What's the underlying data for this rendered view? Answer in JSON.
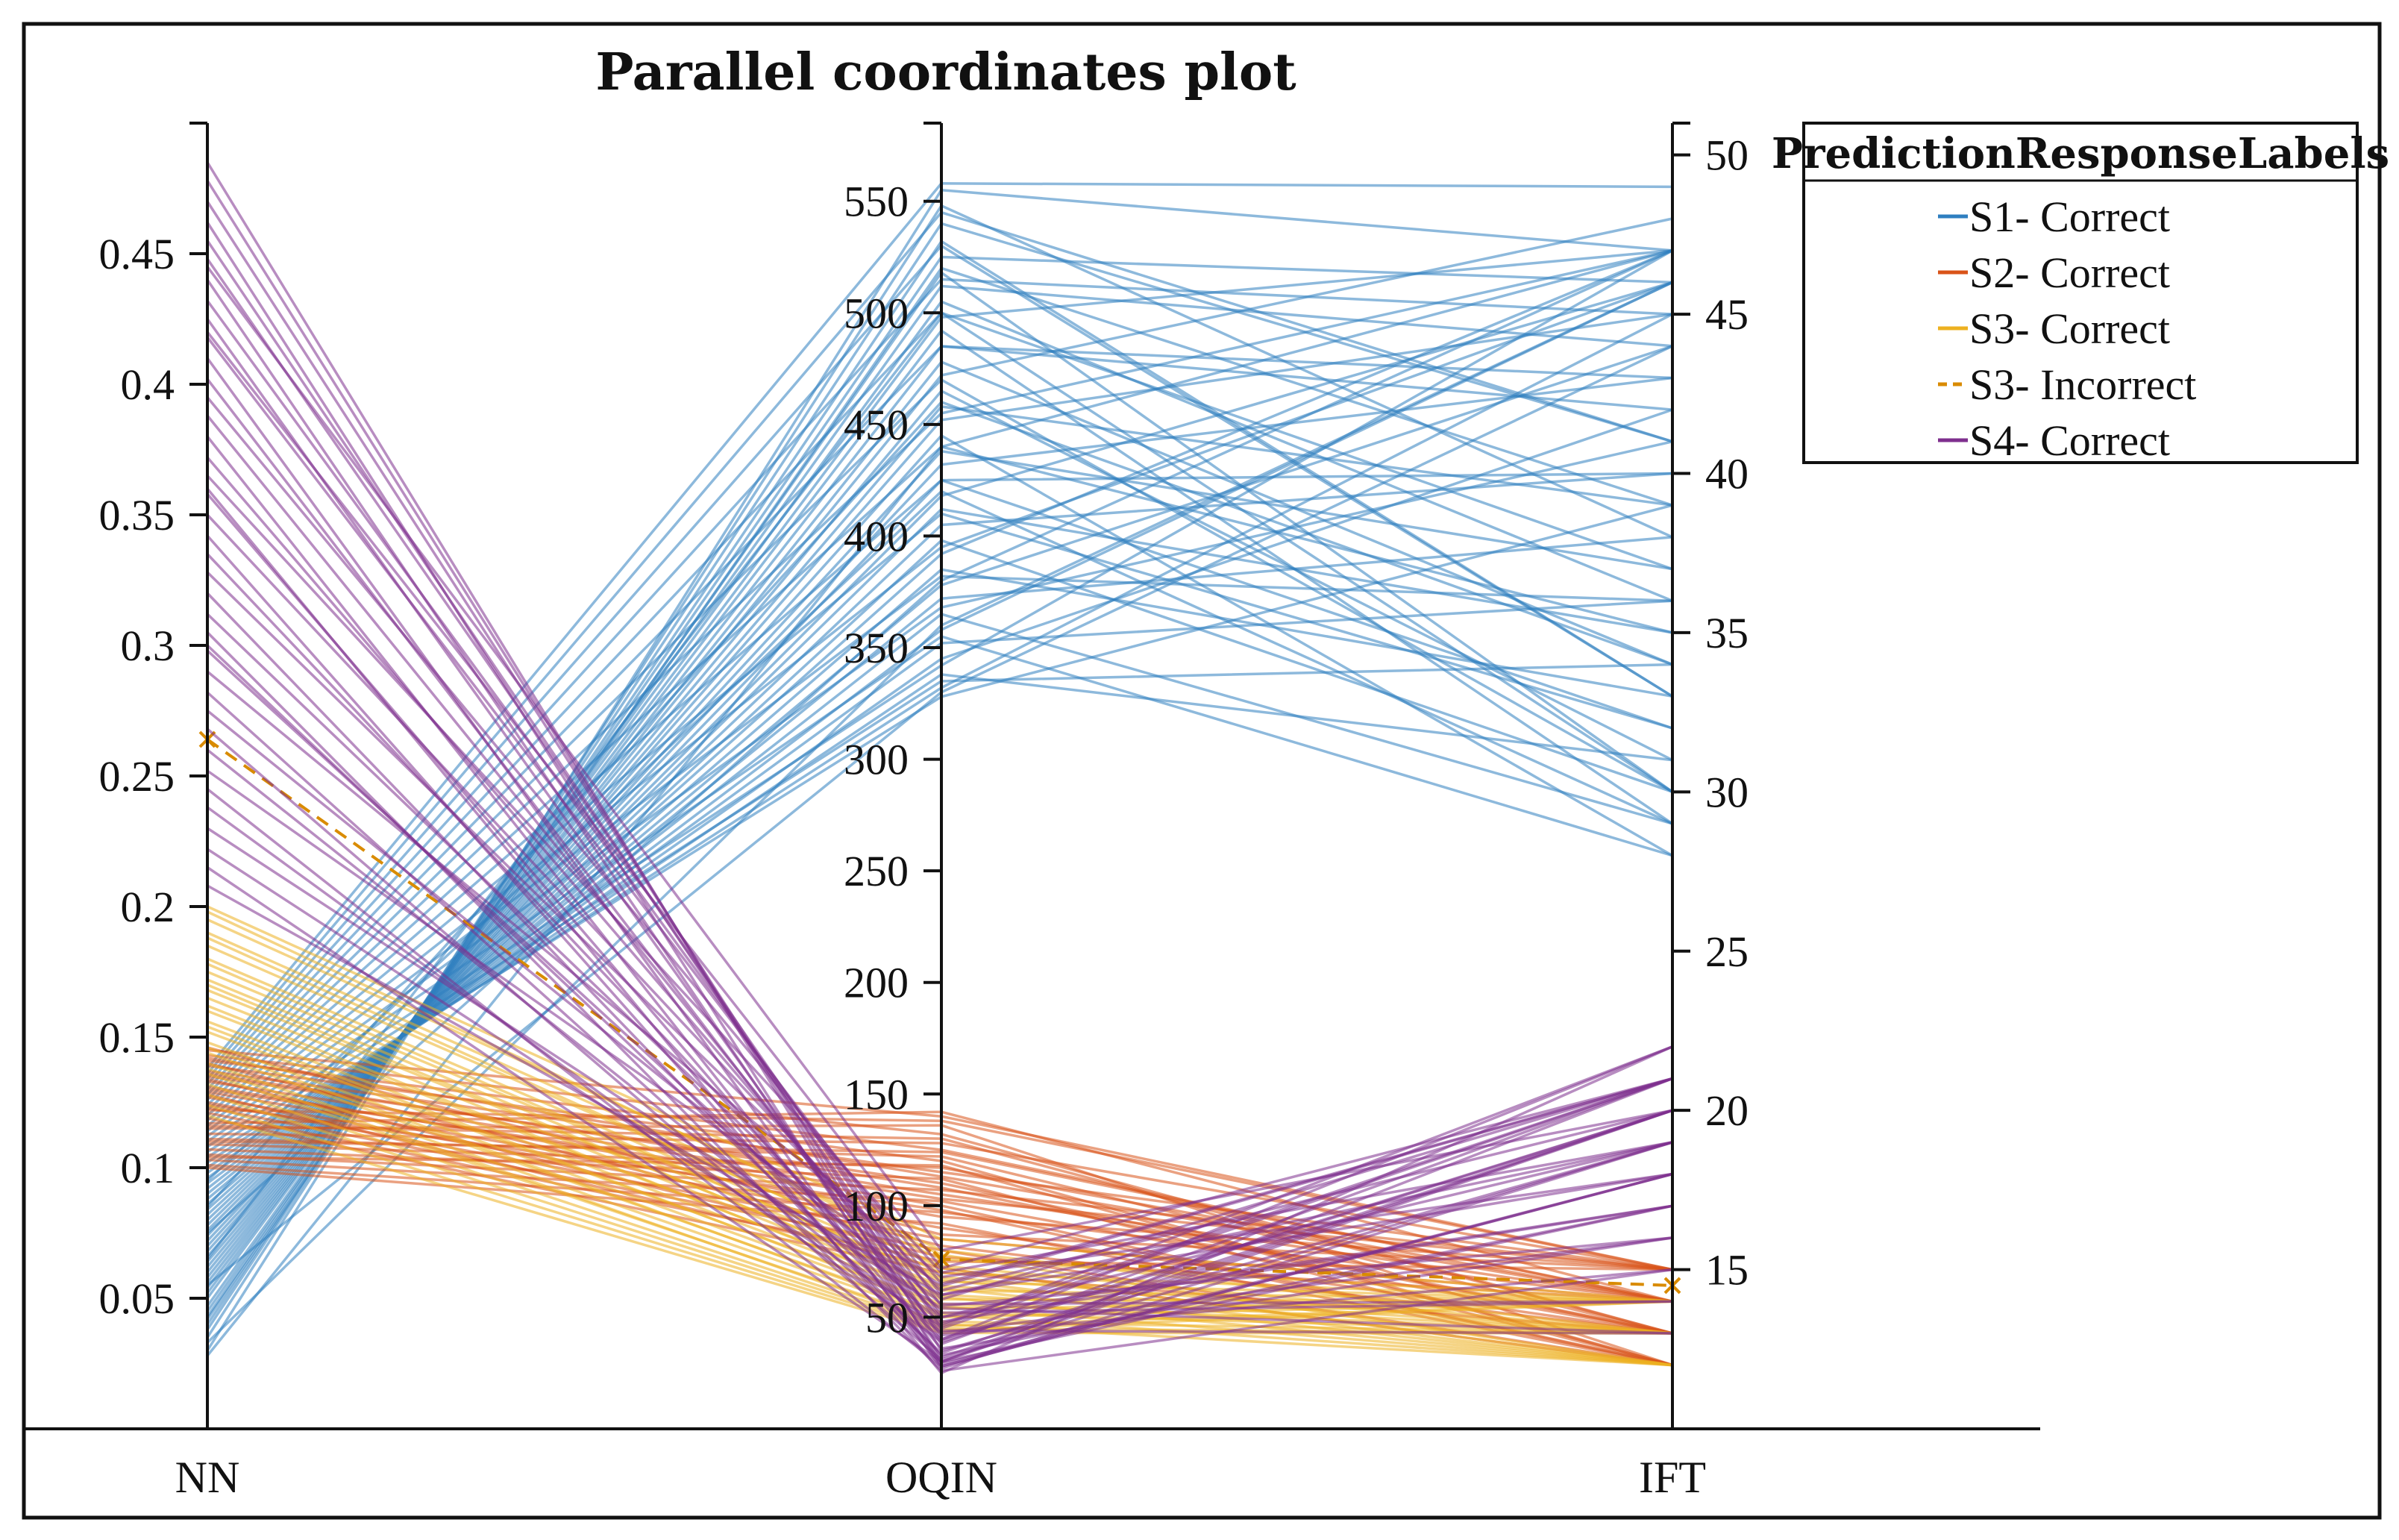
{
  "chart_data": {
    "type": "parallel-coordinates",
    "title": "Parallel coordinates plot",
    "axes": [
      {
        "name": "NN",
        "range": [
          0,
          0.5
        ],
        "ticks": [
          0.05,
          0.1,
          0.15,
          0.2,
          0.25,
          0.3,
          0.35,
          0.4,
          0.45
        ],
        "tick_labels": [
          "0.05",
          "0.1",
          "0.15",
          "0.2",
          "0.25",
          "0.3",
          "0.35",
          "0.4",
          "0.45"
        ],
        "tick_side": "left"
      },
      {
        "name": "OQIN",
        "range": [
          0,
          585
        ],
        "ticks": [
          50,
          100,
          150,
          200,
          250,
          300,
          350,
          400,
          450,
          500,
          550
        ],
        "tick_labels": [
          "50",
          "100",
          "150",
          "200",
          "250",
          "300",
          "350",
          "400",
          "450",
          "500",
          "550"
        ],
        "tick_side": "left"
      },
      {
        "name": "IFT",
        "range": [
          10,
          51
        ],
        "ticks": [
          15,
          20,
          25,
          30,
          35,
          40,
          45,
          50
        ],
        "tick_labels": [
          "15",
          "20",
          "25",
          "30",
          "35",
          "40",
          "45",
          "50"
        ],
        "tick_side": "right"
      }
    ],
    "legend": {
      "title": "PredictionResponseLabels",
      "position": "top-right",
      "entries": [
        {
          "label": "S1- Correct",
          "color": "#2f7fc0",
          "dash": "solid"
        },
        {
          "label": "S2- Correct",
          "color": "#d95319",
          "dash": "solid"
        },
        {
          "label": "S3- Correct",
          "color": "#edb120",
          "dash": "solid"
        },
        {
          "label": "S3- Incorrect",
          "color": "#d98b00",
          "dash": "dashed"
        },
        {
          "label": "S4- Correct",
          "color": "#7e2f8e",
          "dash": "solid"
        }
      ]
    },
    "series": [
      {
        "name": "S1- Correct",
        "color": "#2f7fc0",
        "lines": [
          [
            0.03,
            555,
            47
          ],
          [
            0.035,
            548,
            38
          ],
          [
            0.038,
            540,
            41
          ],
          [
            0.04,
            532,
            33
          ],
          [
            0.043,
            525,
            46
          ],
          [
            0.045,
            518,
            30
          ],
          [
            0.047,
            512,
            44
          ],
          [
            0.05,
            505,
            36
          ],
          [
            0.052,
            498,
            47
          ],
          [
            0.054,
            492,
            29
          ],
          [
            0.056,
            485,
            42
          ],
          [
            0.058,
            478,
            34
          ],
          [
            0.06,
            472,
            48
          ],
          [
            0.062,
            465,
            31
          ],
          [
            0.064,
            458,
            39
          ],
          [
            0.066,
            452,
            45
          ],
          [
            0.068,
            445,
            28
          ],
          [
            0.07,
            438,
            37
          ],
          [
            0.072,
            432,
            43
          ],
          [
            0.074,
            425,
            32
          ],
          [
            0.076,
            418,
            46
          ],
          [
            0.078,
            412,
            35
          ],
          [
            0.08,
            405,
            40
          ],
          [
            0.082,
            398,
            30
          ],
          [
            0.084,
            392,
            47
          ],
          [
            0.086,
            385,
            33
          ],
          [
            0.088,
            378,
            44
          ],
          [
            0.09,
            372,
            38
          ],
          [
            0.092,
            365,
            29
          ],
          [
            0.094,
            358,
            46
          ],
          [
            0.096,
            352,
            36
          ],
          [
            0.098,
            345,
            42
          ],
          [
            0.1,
            338,
            31
          ],
          [
            0.102,
            332,
            45
          ],
          [
            0.104,
            328,
            39
          ],
          [
            0.106,
            335,
            34
          ],
          [
            0.108,
            342,
            47
          ],
          [
            0.11,
            355,
            28
          ],
          [
            0.112,
            368,
            41
          ],
          [
            0.114,
            382,
            36
          ],
          [
            0.116,
            395,
            46
          ],
          [
            0.118,
            410,
            32
          ],
          [
            0.12,
            425,
            40
          ],
          [
            0.122,
            440,
            35
          ],
          [
            0.124,
            455,
            47
          ],
          [
            0.126,
            470,
            30
          ],
          [
            0.128,
            485,
            43
          ],
          [
            0.13,
            500,
            37
          ],
          [
            0.132,
            515,
            45
          ],
          [
            0.134,
            530,
            33
          ],
          [
            0.136,
            545,
            41
          ],
          [
            0.138,
            558,
            49
          ],
          [
            0.028,
            440,
            47
          ],
          [
            0.033,
            360,
            46
          ],
          [
            0.042,
            520,
            39
          ],
          [
            0.055,
            330,
            44
          ],
          [
            0.065,
            500,
            30
          ],
          [
            0.075,
            380,
            47
          ],
          [
            0.085,
            460,
            34
          ],
          [
            0.095,
            420,
            29
          ]
        ]
      },
      {
        "name": "S2- Correct",
        "color": "#d95319",
        "lines": [
          [
            0.145,
            140,
            15
          ],
          [
            0.143,
            132,
            13
          ],
          [
            0.141,
            125,
            14
          ],
          [
            0.139,
            120,
            12
          ],
          [
            0.137,
            115,
            15
          ],
          [
            0.135,
            110,
            13
          ],
          [
            0.133,
            105,
            14
          ],
          [
            0.131,
            100,
            12
          ],
          [
            0.129,
            95,
            15
          ],
          [
            0.127,
            90,
            13
          ],
          [
            0.125,
            85,
            14
          ],
          [
            0.123,
            80,
            12
          ],
          [
            0.121,
            75,
            15
          ],
          [
            0.119,
            70,
            13
          ],
          [
            0.117,
            142,
            14
          ],
          [
            0.115,
            136,
            12
          ],
          [
            0.113,
            128,
            15
          ],
          [
            0.111,
            122,
            13
          ],
          [
            0.109,
            117,
            14
          ],
          [
            0.107,
            112,
            12
          ],
          [
            0.105,
            107,
            15
          ],
          [
            0.103,
            102,
            13
          ],
          [
            0.101,
            97,
            14
          ],
          [
            0.1,
            92,
            12
          ],
          [
            0.146,
            87,
            15
          ],
          [
            0.14,
            82,
            13
          ],
          [
            0.134,
            77,
            14
          ],
          [
            0.128,
            72,
            12
          ],
          [
            0.122,
            138,
            15
          ],
          [
            0.116,
            130,
            13
          ],
          [
            0.11,
            124,
            14
          ],
          [
            0.104,
            118,
            12
          ],
          [
            0.142,
            113,
            14
          ],
          [
            0.136,
            108,
            13
          ],
          [
            0.13,
            103,
            15
          ],
          [
            0.124,
            98,
            12
          ]
        ]
      },
      {
        "name": "S3- Correct",
        "color": "#edb120",
        "lines": [
          [
            0.2,
            85,
            14
          ],
          [
            0.195,
            80,
            13
          ],
          [
            0.19,
            76,
            14
          ],
          [
            0.185,
            73,
            13
          ],
          [
            0.18,
            70,
            14
          ],
          [
            0.175,
            68,
            13
          ],
          [
            0.172,
            66,
            14
          ],
          [
            0.168,
            64,
            13
          ],
          [
            0.165,
            62,
            14
          ],
          [
            0.16,
            60,
            13
          ],
          [
            0.156,
            58,
            14
          ],
          [
            0.152,
            56,
            13
          ],
          [
            0.148,
            54,
            14
          ],
          [
            0.144,
            52,
            13
          ],
          [
            0.14,
            50,
            14
          ],
          [
            0.136,
            48,
            13
          ],
          [
            0.132,
            46,
            14
          ],
          [
            0.128,
            45,
            13
          ],
          [
            0.124,
            44,
            14
          ],
          [
            0.12,
            43,
            13
          ],
          [
            0.198,
            78,
            12
          ],
          [
            0.188,
            72,
            12
          ],
          [
            0.178,
            67,
            12
          ],
          [
            0.17,
            63,
            12
          ],
          [
            0.162,
            59,
            12
          ],
          [
            0.154,
            55,
            12
          ],
          [
            0.146,
            51,
            12
          ],
          [
            0.138,
            47,
            12
          ]
        ]
      },
      {
        "name": "S3- Incorrect",
        "color": "#d98b00",
        "lines": [
          [
            0.264,
            76,
            14.5
          ]
        ]
      },
      {
        "name": "S4- Correct",
        "color": "#7e2f8e",
        "lines": [
          [
            0.485,
            30,
            21
          ],
          [
            0.478,
            35,
            19
          ],
          [
            0.47,
            40,
            20
          ],
          [
            0.462,
            28,
            18
          ],
          [
            0.455,
            45,
            21
          ],
          [
            0.448,
            50,
            17
          ],
          [
            0.44,
            32,
            20
          ],
          [
            0.432,
            55,
            16
          ],
          [
            0.425,
            38,
            21
          ],
          [
            0.418,
            60,
            18
          ],
          [
            0.41,
            27,
            19
          ],
          [
            0.402,
            42,
            15
          ],
          [
            0.395,
            65,
            21
          ],
          [
            0.388,
            48,
            17
          ],
          [
            0.38,
            30,
            20
          ],
          [
            0.372,
            52,
            14
          ],
          [
            0.365,
            70,
            19
          ],
          [
            0.358,
            36,
            16
          ],
          [
            0.35,
            58,
            21
          ],
          [
            0.342,
            29,
            18
          ],
          [
            0.335,
            44,
            13
          ],
          [
            0.328,
            62,
            20
          ],
          [
            0.32,
            33,
            17
          ],
          [
            0.312,
            50,
            19
          ],
          [
            0.305,
            26,
            15
          ],
          [
            0.298,
            47,
            21
          ],
          [
            0.29,
            68,
            18
          ],
          [
            0.282,
            34,
            20
          ],
          [
            0.275,
            56,
            14
          ],
          [
            0.268,
            31,
            19
          ],
          [
            0.26,
            43,
            16
          ],
          [
            0.252,
            64,
            21
          ],
          [
            0.245,
            28,
            18
          ],
          [
            0.238,
            39,
            20
          ],
          [
            0.23,
            54,
            13
          ],
          [
            0.222,
            46,
            22
          ],
          [
            0.215,
            30,
            17
          ],
          [
            0.208,
            60,
            19
          ],
          [
            0.36,
            25,
            22
          ],
          [
            0.42,
            72,
            21
          ],
          [
            0.445,
            80,
            20
          ],
          [
            0.3,
            40,
            22
          ]
        ]
      }
    ]
  }
}
